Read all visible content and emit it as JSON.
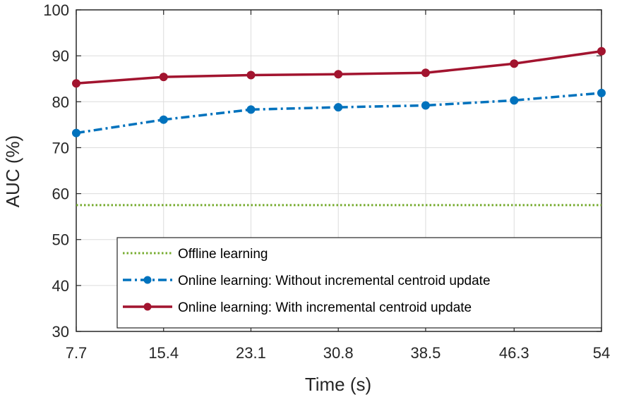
{
  "chart_data": {
    "type": "line",
    "title": "",
    "xlabel": "Time (s)",
    "ylabel": "AUC (%)",
    "x": [
      7.7,
      15.4,
      23.1,
      30.8,
      38.5,
      46.3,
      54
    ],
    "xtick_labels": [
      "7.7",
      "15.4",
      "23.1",
      "30.8",
      "38.5",
      "46.3",
      "54"
    ],
    "ylim": [
      30,
      100
    ],
    "yticks": [
      30,
      40,
      50,
      60,
      70,
      80,
      90,
      100
    ],
    "grid": true,
    "legend_position": "bottom-right",
    "series": [
      {
        "name": "Offline learning",
        "style": "dotted",
        "marker": "none",
        "color": "#77ac30",
        "values": [
          57.5,
          57.5,
          57.5,
          57.5,
          57.5,
          57.5,
          57.5
        ]
      },
      {
        "name": "Online learning: Without incremental centroid update",
        "style": "dashdot",
        "marker": "circle",
        "color": "#0072bd",
        "values": [
          73.2,
          76.1,
          78.3,
          78.8,
          79.2,
          80.3,
          81.9
        ]
      },
      {
        "name": "Online learning: With incremental centroid update",
        "style": "solid",
        "marker": "circle",
        "color": "#a2142f",
        "values": [
          84.0,
          85.4,
          85.8,
          86.0,
          86.3,
          88.3,
          91.0
        ]
      }
    ]
  }
}
